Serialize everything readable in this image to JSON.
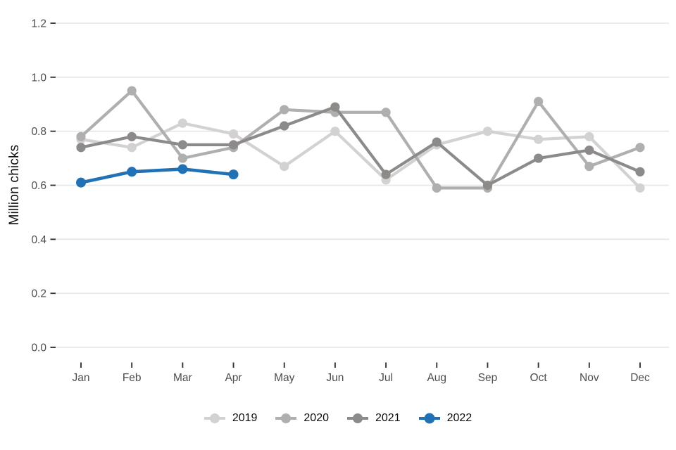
{
  "chart_data": {
    "type": "line",
    "title": "",
    "xlabel": "",
    "ylabel": "Million chicks",
    "categories": [
      "Jan",
      "Feb",
      "Mar",
      "Apr",
      "May",
      "Jun",
      "Jul",
      "Aug",
      "Sep",
      "Oct",
      "Nov",
      "Dec"
    ],
    "ylim": [
      0,
      1.2
    ],
    "yticks": [
      0.0,
      0.2,
      0.4,
      0.6,
      0.8,
      1.0,
      1.2
    ],
    "ytick_labels": [
      "0.0",
      "0.2",
      "0.4",
      "0.6",
      "0.8",
      "1.0",
      "1.2"
    ],
    "grid": "horizontal-only",
    "legend_position": "bottom-center",
    "series": [
      {
        "name": "2019",
        "color": "#d3d1d1",
        "values": [
          0.77,
          0.74,
          0.83,
          0.79,
          0.67,
          0.8,
          0.62,
          0.75,
          0.8,
          0.77,
          0.78,
          0.59
        ]
      },
      {
        "name": "2020",
        "color": "#b1aeae",
        "values": [
          0.78,
          0.95,
          0.7,
          0.74,
          0.88,
          0.87,
          0.87,
          0.59,
          0.59,
          0.91,
          0.67,
          0.74
        ]
      },
      {
        "name": "2021",
        "color": "#8d8a8a",
        "values": [
          0.74,
          0.78,
          0.75,
          0.75,
          0.82,
          0.89,
          0.64,
          0.76,
          0.6,
          0.7,
          0.73,
          0.65
        ]
      },
      {
        "name": "2022",
        "color": "#2171b5",
        "values": [
          0.61,
          0.65,
          0.66,
          0.64,
          null,
          null,
          null,
          null,
          null,
          null,
          null,
          null
        ]
      }
    ],
    "style_colors": {
      "gridline": "#e8e8e8",
      "tick_mark": "#333333",
      "tick_text": "#4d4d4d",
      "background": "#ffffff"
    }
  }
}
